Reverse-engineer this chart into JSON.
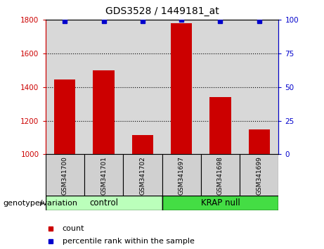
{
  "title": "GDS3528 / 1449181_at",
  "samples": [
    "GSM341700",
    "GSM341701",
    "GSM341702",
    "GSM341697",
    "GSM341698",
    "GSM341699"
  ],
  "bar_values": [
    1445,
    1500,
    1115,
    1780,
    1340,
    1150
  ],
  "percentile_values": [
    99,
    99,
    99,
    100,
    99,
    99
  ],
  "bar_color": "#cc0000",
  "dot_color": "#0000cc",
  "ylim_left": [
    1000,
    1800
  ],
  "ylim_right": [
    0,
    100
  ],
  "yticks_left": [
    1000,
    1200,
    1400,
    1600,
    1800
  ],
  "yticks_right": [
    0,
    25,
    50,
    75,
    100
  ],
  "grid_values": [
    1200,
    1400,
    1600
  ],
  "groups": [
    {
      "label": "control",
      "color": "#bbffbb",
      "color_dark": "#44cc44"
    },
    {
      "label": "KRAP null",
      "color": "#44dd44",
      "color_dark": "#22aa22"
    }
  ],
  "group_label": "genotype/variation",
  "legend_count_label": "count",
  "legend_percentile_label": "percentile rank within the sample",
  "bar_width": 0.55,
  "plot_bg_color": "#d8d8d8",
  "left_tick_color": "#cc0000",
  "right_tick_color": "#0000cc",
  "spine_color": "#000000",
  "title_fontsize": 10,
  "tick_fontsize": 7.5,
  "label_fontsize": 8
}
